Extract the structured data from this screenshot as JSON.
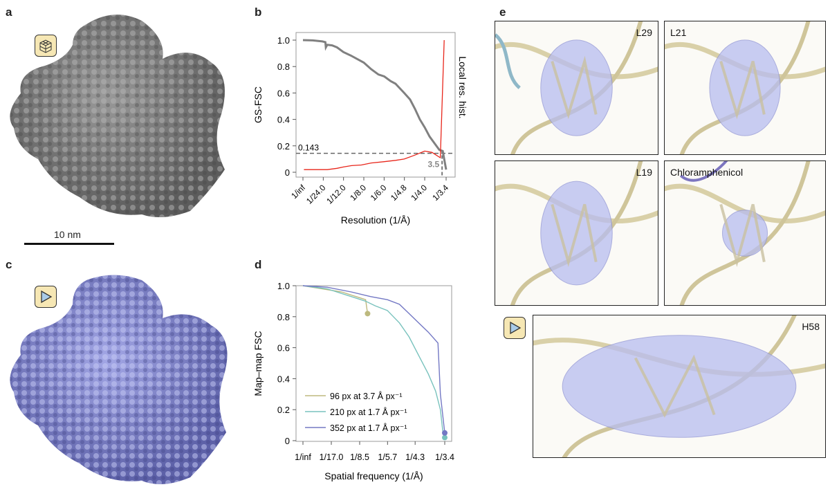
{
  "panels": {
    "a": {
      "label": "a",
      "scale_bar": "10 nm",
      "icon": "voxel-cube-icon"
    },
    "b": {
      "label": "b"
    },
    "c": {
      "label": "c",
      "icon": "play-triangle-icon"
    },
    "d": {
      "label": "d"
    },
    "e": {
      "label": "e",
      "insets": [
        "L29",
        "L21",
        "L19",
        "Chloramphenicol",
        "H58"
      ],
      "icon": "play-triangle-icon"
    }
  },
  "colors": {
    "grey_map": "#8a8a8a",
    "blue_map": "#8b8fd6",
    "ribbon": "#d8cfa6",
    "density": "#b8bdf0"
  },
  "chart_data": [
    {
      "type": "line",
      "ylabel": "GS-FSC",
      "xlabel": "Resolution (1/Å)",
      "right_label": "Local res. hist.",
      "xlim": [
        0,
        0.294
      ],
      "ylim": [
        0,
        1.0
      ],
      "xticks": [
        0,
        0.0417,
        0.0833,
        0.125,
        0.1667,
        0.2083,
        0.25,
        0.294
      ],
      "xtick_labels": [
        "1/inf",
        "1/24.0",
        "1/12.0",
        "1/8.0",
        "1/6.0",
        "1/4.8",
        "1/4.0",
        "1/3.4"
      ],
      "yticks": [
        0,
        0.2,
        0.4,
        0.6,
        0.8,
        1.0
      ],
      "ytick_labels": [
        "0",
        "0.2",
        "0.4",
        "0.6",
        "0.8",
        "1.0"
      ],
      "threshold": {
        "value": 0.143,
        "label": "0.143"
      },
      "resolution_marker": {
        "x": 0.2857,
        "label": "3.5"
      },
      "series": [
        {
          "name": "GS-FSC",
          "color": "#808080",
          "x": [
            0,
            0.02,
            0.04,
            0.046,
            0.047,
            0.05,
            0.06,
            0.07,
            0.083,
            0.1,
            0.125,
            0.14,
            0.155,
            0.167,
            0.18,
            0.19,
            0.208,
            0.22,
            0.23,
            0.24,
            0.25,
            0.26,
            0.27,
            0.28,
            0.287,
            0.29,
            0.294
          ],
          "y": [
            1.0,
            0.998,
            0.99,
            0.985,
            0.945,
            0.965,
            0.96,
            0.945,
            0.91,
            0.88,
            0.83,
            0.78,
            0.74,
            0.725,
            0.69,
            0.67,
            0.6,
            0.55,
            0.48,
            0.4,
            0.34,
            0.27,
            0.22,
            0.17,
            0.16,
            0.1,
            0.02
          ]
        },
        {
          "name": "Local res. hist.",
          "color": "#e8251a",
          "x": [
            0.002,
            0.05,
            0.07,
            0.083,
            0.1,
            0.12,
            0.14,
            0.167,
            0.19,
            0.208,
            0.23,
            0.25,
            0.265,
            0.282,
            0.29
          ],
          "y": [
            0.02,
            0.02,
            0.03,
            0.04,
            0.05,
            0.055,
            0.07,
            0.08,
            0.09,
            0.1,
            0.13,
            0.16,
            0.15,
            0.11,
            1.0
          ]
        }
      ]
    },
    {
      "type": "line",
      "ylabel": "Map–map FSC",
      "xlabel": "Spatial frequency (1/Å)",
      "xlim": [
        0,
        0.294
      ],
      "ylim": [
        0,
        1.0
      ],
      "xticks": [
        0,
        0.0588,
        0.1176,
        0.1754,
        0.2326,
        0.294
      ],
      "xtick_labels": [
        "1/inf",
        "1/17.0",
        "1/8.5",
        "1/5.7",
        "1/4.3",
        "1/3.4"
      ],
      "yticks": [
        0,
        0.2,
        0.4,
        0.6,
        0.8,
        1.0
      ],
      "ytick_labels": [
        "0",
        "0.2",
        "0.4",
        "0.6",
        "0.8",
        "1.0"
      ],
      "legend_position": "bottom-left",
      "series": [
        {
          "name": "96 px at 3.7 Å px⁻¹",
          "color": "#bdb97e",
          "x": [
            0,
            0.04,
            0.08,
            0.11,
            0.13,
            0.134
          ],
          "y": [
            1,
            0.98,
            0.96,
            0.93,
            0.91,
            0.82
          ]
        },
        {
          "name": "210 px at 1.7 Å px⁻¹",
          "color": "#78c2bd",
          "x": [
            0,
            0.05,
            0.1,
            0.13,
            0.15,
            0.175,
            0.2,
            0.22,
            0.24,
            0.26,
            0.275,
            0.285,
            0.29,
            0.294
          ],
          "y": [
            1,
            0.98,
            0.93,
            0.9,
            0.87,
            0.84,
            0.76,
            0.67,
            0.55,
            0.43,
            0.32,
            0.2,
            0.06,
            0.02
          ]
        },
        {
          "name": "352 px at 1.7 Å px⁻¹",
          "color": "#7378c4",
          "x": [
            0,
            0.05,
            0.1,
            0.14,
            0.175,
            0.2,
            0.22,
            0.24,
            0.26,
            0.28,
            0.285,
            0.294
          ],
          "y": [
            1,
            0.99,
            0.96,
            0.93,
            0.91,
            0.88,
            0.82,
            0.76,
            0.7,
            0.63,
            0.3,
            0.05
          ]
        }
      ]
    }
  ]
}
